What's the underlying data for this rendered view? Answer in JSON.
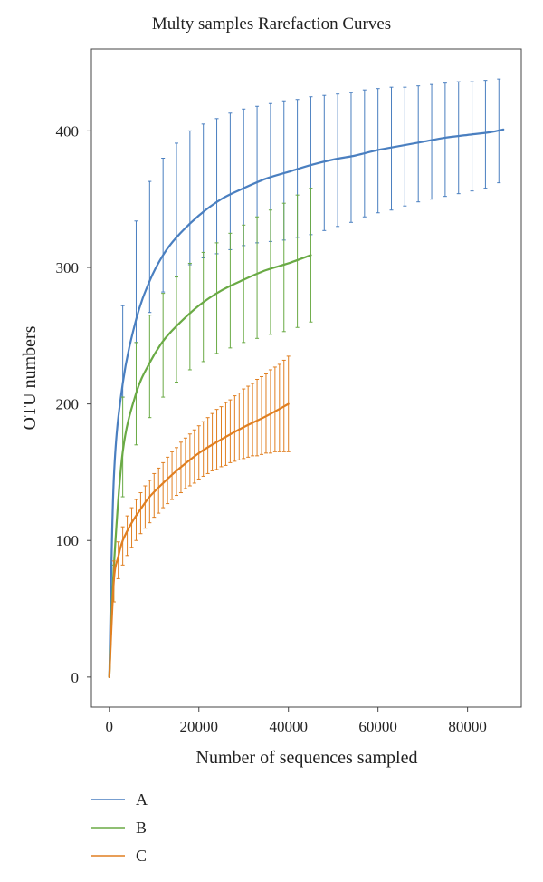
{
  "chart_data": {
    "type": "line",
    "title": "Multy samples Rarefaction Curves",
    "xlabel": "Number of sequences sampled",
    "ylabel": "OTU numbers",
    "xlim": [
      -4000,
      92000
    ],
    "ylim": [
      -22,
      460
    ],
    "xticks": [
      0,
      20000,
      40000,
      60000,
      80000
    ],
    "yticks": [
      0,
      100,
      200,
      300,
      400
    ],
    "xtick_labels": [
      "0",
      "20000",
      "40000",
      "60000",
      "80000"
    ],
    "ytick_labels": [
      "0",
      "100",
      "200",
      "300",
      "400"
    ],
    "grid": false,
    "legend_position": "bottom-left",
    "series": [
      {
        "name": "A",
        "color": "#4a7fc0",
        "curve_x": [
          0,
          1000,
          3000,
          6000,
          9000,
          12000,
          15000,
          20000,
          25000,
          30000,
          35000,
          40000,
          45000,
          50000,
          55000,
          60000,
          65000,
          70000,
          75000,
          80000,
          85000,
          88000
        ],
        "curve_y": [
          0,
          145,
          215,
          262,
          290,
          309,
          322,
          338,
          350,
          358,
          365,
          370,
          375,
          379,
          382,
          386,
          389,
          392,
          395,
          397,
          399,
          401
        ],
        "error_bars": {
          "x": [
            3000,
            6000,
            9000,
            12000,
            15000,
            18000,
            21000,
            24000,
            27000,
            30000,
            33000,
            36000,
            39000,
            42000,
            45000,
            48000,
            51000,
            54000,
            57000,
            60000,
            63000,
            66000,
            69000,
            72000,
            75000,
            78000,
            81000,
            84000,
            87000
          ],
          "high": [
            272,
            334,
            363,
            380,
            391,
            400,
            405,
            409,
            413,
            416,
            418,
            420,
            422,
            423,
            425,
            426,
            427,
            428,
            430,
            431,
            432,
            432,
            433,
            434,
            435,
            436,
            436,
            437,
            438
          ],
          "low": [
            205,
            245,
            267,
            282,
            293,
            302,
            307,
            310,
            313,
            316,
            318,
            319,
            320,
            322,
            324,
            327,
            330,
            333,
            337,
            340,
            342,
            345,
            348,
            350,
            352,
            354,
            356,
            358,
            362
          ]
        }
      },
      {
        "name": "B",
        "color": "#6aaa45",
        "curve_x": [
          0,
          1000,
          3000,
          6000,
          9000,
          12000,
          15000,
          20000,
          25000,
          30000,
          35000,
          40000,
          45000
        ],
        "curve_y": [
          0,
          80,
          165,
          208,
          230,
          246,
          257,
          272,
          283,
          291,
          298,
          303,
          309
        ],
        "error_bars": {
          "x": [
            1000,
            3000,
            6000,
            9000,
            12000,
            15000,
            18000,
            21000,
            24000,
            27000,
            30000,
            33000,
            36000,
            39000,
            42000,
            45000
          ],
          "high": [
            82,
            205,
            245,
            265,
            281,
            293,
            303,
            311,
            318,
            325,
            331,
            337,
            342,
            347,
            353,
            358
          ],
          "low": [
            55,
            132,
            170,
            190,
            205,
            216,
            225,
            231,
            237,
            241,
            245,
            248,
            251,
            253,
            256,
            260
          ]
        }
      },
      {
        "name": "C",
        "color": "#e07f21",
        "curve_x": [
          0,
          1000,
          2000,
          3000,
          5000,
          7000,
          9000,
          12000,
          15000,
          20000,
          25000,
          30000,
          35000,
          40000
        ],
        "curve_y": [
          0,
          70,
          88,
          100,
          113,
          123,
          132,
          142,
          151,
          164,
          174,
          183,
          191,
          200
        ],
        "error_bars": {
          "x": [
            1000,
            2000,
            3000,
            4000,
            5000,
            6000,
            7000,
            8000,
            9000,
            10000,
            11000,
            12000,
            13000,
            14000,
            15000,
            16000,
            17000,
            18000,
            19000,
            20000,
            21000,
            22000,
            23000,
            24000,
            25000,
            26000,
            27000,
            28000,
            29000,
            30000,
            31000,
            32000,
            33000,
            34000,
            35000,
            36000,
            37000,
            38000,
            39000,
            40000
          ],
          "high": [
            85,
            99,
            110,
            118,
            124,
            130,
            135,
            140,
            144,
            149,
            153,
            157,
            161,
            165,
            168,
            172,
            175,
            178,
            181,
            184,
            187,
            190,
            193,
            196,
            198,
            201,
            203,
            206,
            208,
            211,
            213,
            215,
            218,
            220,
            222,
            225,
            227,
            229,
            232,
            235
          ],
          "low": [
            55,
            72,
            82,
            89,
            95,
            100,
            105,
            109,
            113,
            117,
            120,
            124,
            127,
            130,
            133,
            135,
            138,
            140,
            142,
            145,
            147,
            149,
            151,
            152,
            154,
            155,
            157,
            158,
            159,
            160,
            161,
            162,
            162,
            163,
            164,
            164,
            165,
            165,
            165,
            165
          ]
        }
      }
    ]
  }
}
